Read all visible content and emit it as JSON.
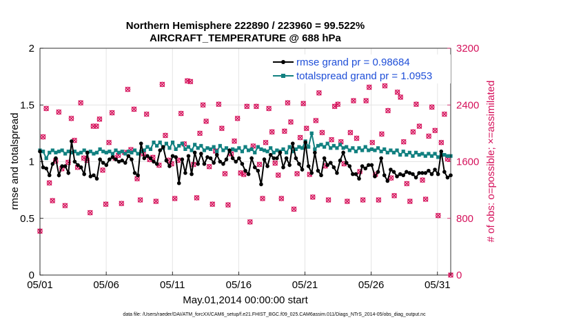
{
  "colors": {
    "rmse": "#000000",
    "spread": "#118080",
    "obs": "#d5105a",
    "legend_text": "#1f4fd8",
    "grid": "#e4e4e4"
  },
  "chart_data": {
    "type": "line",
    "title_line1": "Northern Hemisphere 222890 / 223960 = 99.522%",
    "title_line2": "AIRCRAFT_TEMPERATURE @ 688 hPa",
    "xlabel": "May.01,2014 00:00:00 start",
    "ylabel": "rmse and totalspread",
    "ylabel_right": "# of obs: o=possible; ×=assimilated",
    "xlim": [
      1,
      32
    ],
    "ylim": [
      0,
      2
    ],
    "ylim_right": [
      0,
      3200
    ],
    "x_ticks": [
      1,
      6,
      11,
      16,
      21,
      26,
      31
    ],
    "x_tick_labels": [
      "05/01",
      "05/06",
      "05/11",
      "05/16",
      "05/21",
      "05/26",
      "05/31"
    ],
    "y_ticks": [
      0,
      0.5,
      1,
      1.5,
      2
    ],
    "y_tick_labels": [
      "0",
      "0.5",
      "1",
      "1.5",
      "2"
    ],
    "y_ticks_right": [
      0,
      800,
      1600,
      2400,
      3200
    ],
    "y_tick_labels_right": [
      "0",
      "800",
      "1600",
      "2400",
      "3200"
    ],
    "grid": true,
    "legend_position": "top-right",
    "series": [
      {
        "name": "rmse grand pr = 0.98684",
        "axis": "left",
        "marker": "circle",
        "values": [
          1.09,
          0.95,
          0.94,
          0.88,
          0.98,
          1.03,
          0.88,
          0.96,
          0.96,
          0.9,
          1.18,
          1.0,
          0.97,
          0.95,
          0.89,
          1.08,
          0.87,
          0.88,
          0.85,
          1.02,
          0.99,
          0.97,
          1.02,
          1.04,
          1.02,
          1.0,
          1.01,
          0.99,
          1.05,
          1.02,
          0.9,
          0.88,
          1.16,
          1.03,
          1.05,
          1.03,
          1.0,
          0.98,
          1.1,
          1.13,
          1.01,
          0.96,
          1.05,
          1.04,
          0.81,
          1.02,
          0.9,
          1.05,
          0.89,
          1.08,
          0.98,
          1.07,
          0.98,
          1.04,
          1.03,
          0.99,
          1.06,
          1.0,
          0.98,
          1.02,
          1.1,
          1.03,
          1.0,
          1.03,
          0.98,
          0.92,
          0.89,
          1.03,
          0.95,
          0.92,
          0.8,
          1.02,
          0.96,
          1.06,
          1.03,
          1.03,
          1.08,
          0.95,
          1.03,
          0.97,
          1.16,
          1.03,
          0.98,
          0.93,
          1.17,
          0.96,
          0.9,
          1.08,
          0.92,
          0.88,
          1.03,
          0.97,
          0.99,
          0.95,
          0.9,
          1.01,
          1.08,
          0.99,
          0.96,
          0.89,
          0.89,
          0.85,
          0.96,
          0.94,
          0.97,
          0.97,
          0.87,
          0.91,
          1.03,
          0.88,
          0.83,
          0.93,
          0.91,
          0.87,
          0.89,
          0.88,
          0.91,
          0.9,
          0.89,
          0.86,
          0.9,
          0.9,
          0.9,
          0.92,
          0.89,
          0.93,
          0.89,
          1.09,
          0.91,
          0.86,
          0.88
        ]
      },
      {
        "name": "totalspread grand pr = 1.0953",
        "axis": "left",
        "marker": "square",
        "values": [
          1.1,
          1.09,
          1.03,
          1.08,
          1.1,
          1.08,
          1.09,
          1.1,
          1.07,
          1.09,
          1.08,
          1.09,
          1.07,
          1.08,
          1.1,
          1.08,
          1.09,
          1.07,
          1.08,
          1.11,
          1.09,
          1.08,
          1.09,
          1.07,
          1.1,
          1.08,
          1.09,
          1.07,
          1.09,
          1.08,
          1.1,
          1.07,
          1.09,
          1.1,
          1.13,
          1.11,
          1.17,
          1.14,
          1.17,
          1.12,
          1.16,
          1.12,
          1.17,
          1.11,
          1.14,
          1.16,
          1.11,
          1.13,
          1.1,
          1.15,
          1.12,
          1.14,
          1.1,
          1.12,
          1.11,
          1.13,
          1.09,
          1.14,
          1.1,
          1.12,
          1.09,
          1.11,
          1.1,
          1.12,
          1.09,
          1.13,
          1.1,
          1.11,
          1.08,
          1.13,
          1.11,
          1.1,
          1.09,
          1.12,
          1.08,
          1.1,
          1.09,
          1.11,
          1.08,
          1.13,
          1.09,
          1.11,
          1.13,
          1.12,
          1.18,
          1.13,
          1.25,
          1.11,
          1.14,
          1.15,
          1.13,
          1.16,
          1.12,
          1.14,
          1.12,
          1.15,
          1.12,
          1.13,
          1.1,
          1.12,
          1.09,
          1.12,
          1.1,
          1.13,
          1.1,
          1.11,
          1.1,
          1.12,
          1.09,
          1.11,
          1.08,
          1.1,
          1.08,
          1.1,
          1.06,
          1.09,
          1.06,
          1.08,
          1.05,
          1.08,
          1.06,
          1.07,
          1.05,
          1.07,
          1.05,
          1.07,
          1.04,
          1.06,
          1.06,
          1.05,
          1.05
        ]
      },
      {
        "name": "# of obs",
        "axis": "right",
        "marker": "x",
        "values": [
          620,
          1950,
          2350,
          1300,
          1050,
          1610,
          2300,
          1500,
          980,
          1590,
          2210,
          1900,
          1520,
          2430,
          1650,
          1620,
          880,
          2100,
          2100,
          2200,
          1480,
          1000,
          1870,
          2290,
          1650,
          1690,
          1010,
          1730,
          2620,
          1770,
          2340,
          1360,
          1060,
          1710,
          2270,
          1630,
          1660,
          1040,
          1550,
          2690,
          1970,
          1620,
          1570,
          1080,
          1620,
          2280,
          1850,
          2740,
          2730,
          1560,
          1090,
          2000,
          2400,
          2170,
          1530,
          1000,
          1750,
          2410,
          2070,
          1430,
          990,
          1710,
          1890,
          2210,
          1440,
          1420,
          2380,
          750,
          1820,
          2380,
          1560,
          1080,
          1870,
          2350,
          2020,
          1580,
          1410,
          1080,
          2030,
          2430,
          2160,
          930,
          1430,
          1940,
          2420,
          2070,
          1420,
          1100,
          2180,
          2570,
          2010,
          1540,
          1060,
          1910,
          2380,
          2410,
          1880,
          1570,
          1040,
          2010,
          2460,
          1930,
          1460,
          1060,
          2460,
          2650,
          1870,
          1420,
          1060,
          1990,
          2670,
          2320,
          1370,
          1120,
          2580,
          2510,
          1880,
          1290,
          1040,
          2020,
          2410,
          2100,
          1340,
          1070,
          1960,
          2370,
          2040,
          840,
          1870,
          2270,
          1640,
          0
        ]
      }
    ]
  },
  "footer": {
    "datafile": "data file: /Users/raeder/DAI/ATM_forcXX/CAM6_setup/f.e21.FHIST_BGC.f09_025.CAM6assim.011/Diags_NTrS_2014-05/obs_diag_output.nc"
  }
}
